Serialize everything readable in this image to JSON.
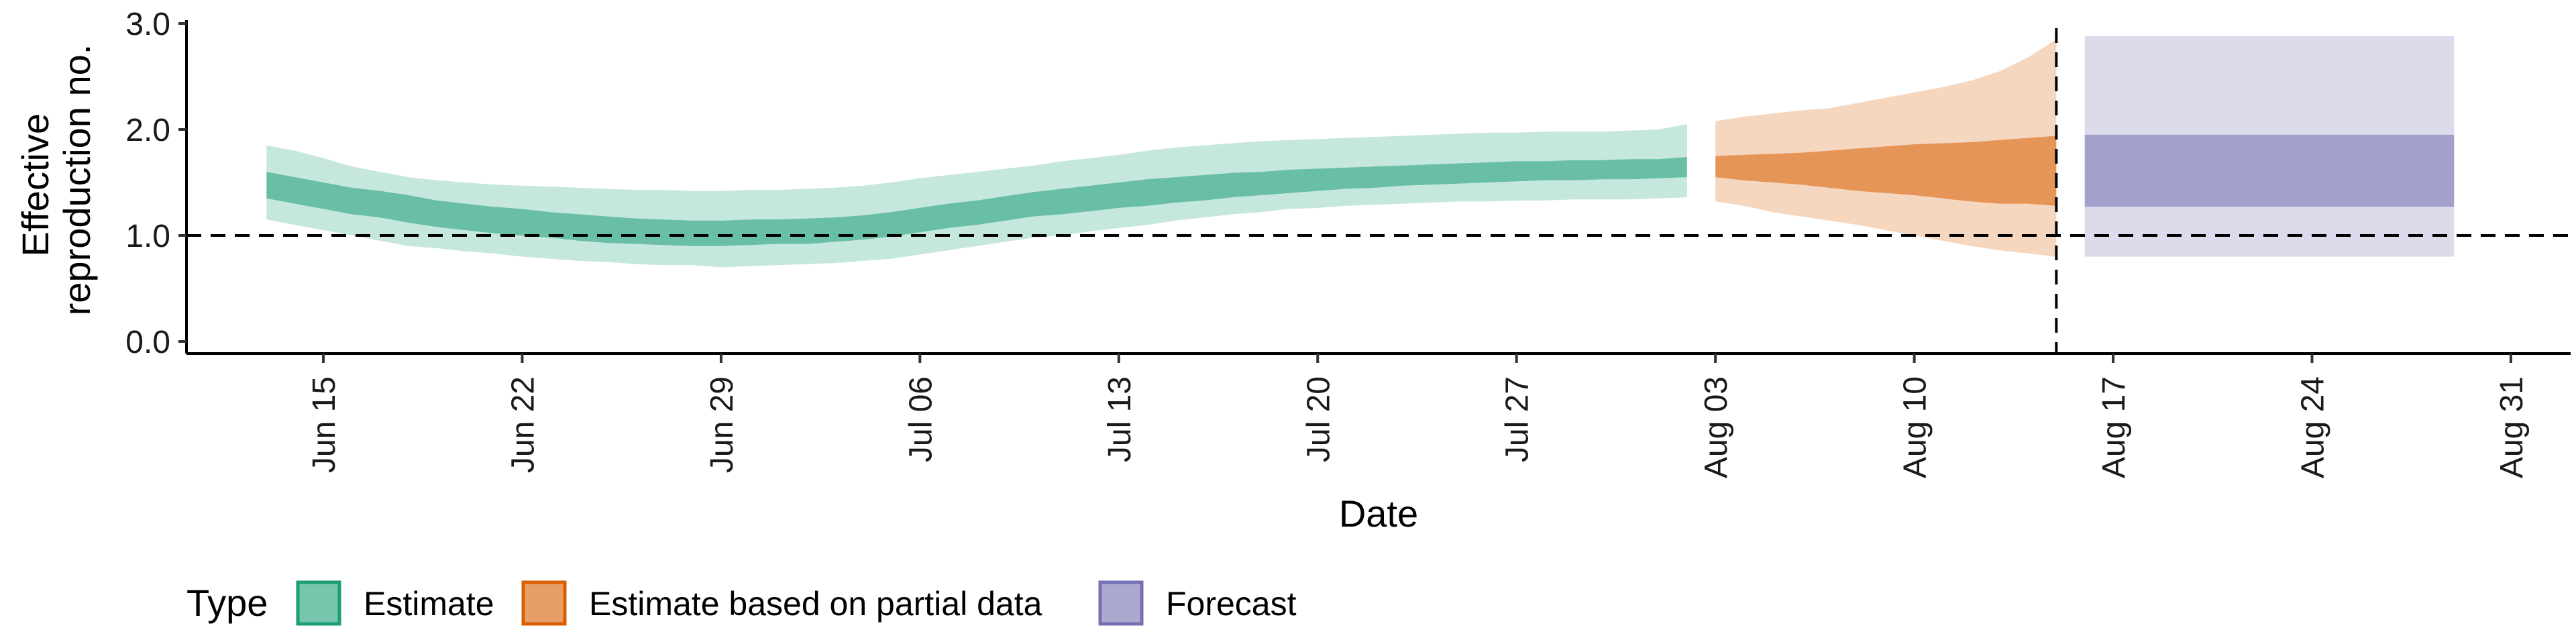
{
  "chart_data": {
    "type": "area",
    "title": "",
    "xlabel": "Date",
    "ylabel": "Effective reproduction no.",
    "ylim": [
      0,
      3
    ],
    "y_ticks": [
      "0.0",
      "1.0",
      "2.0",
      "3.0"
    ],
    "x_ticks": [
      "Jun 15",
      "Jun 22",
      "Jun 29",
      "Jul 06",
      "Jul 13",
      "Jul 20",
      "Jul 27",
      "Aug 03",
      "Aug 10",
      "Aug 17",
      "Aug 24",
      "Aug 31"
    ],
    "x_tick_dates": [
      "2020-06-15",
      "2020-06-22",
      "2020-06-29",
      "2020-07-06",
      "2020-07-13",
      "2020-07-20",
      "2020-07-27",
      "2020-08-03",
      "2020-08-10",
      "2020-08-17",
      "2020-08-24",
      "2020-08-31"
    ],
    "reference_line_y": 1.0,
    "vertical_line_date": "2020-08-15",
    "grid": false,
    "legend": {
      "title": "Type",
      "placement": "bottom",
      "items": [
        {
          "label": "Estimate",
          "color": "#1b9e77"
        },
        {
          "label": "Estimate based on partial data",
          "color": "#d95f02"
        },
        {
          "label": "Forecast",
          "color": "#7570b3"
        }
      ]
    },
    "series": [
      {
        "name": "Estimate",
        "color": "#1b9e77",
        "x": [
          "2020-06-13",
          "2020-06-14",
          "2020-06-15",
          "2020-06-16",
          "2020-06-17",
          "2020-06-18",
          "2020-06-19",
          "2020-06-20",
          "2020-06-21",
          "2020-06-22",
          "2020-06-23",
          "2020-06-24",
          "2020-06-25",
          "2020-06-26",
          "2020-06-27",
          "2020-06-28",
          "2020-06-29",
          "2020-06-30",
          "2020-07-01",
          "2020-07-02",
          "2020-07-03",
          "2020-07-04",
          "2020-07-05",
          "2020-07-06",
          "2020-07-07",
          "2020-07-08",
          "2020-07-09",
          "2020-07-10",
          "2020-07-11",
          "2020-07-12",
          "2020-07-13",
          "2020-07-14",
          "2020-07-15",
          "2020-07-16",
          "2020-07-17",
          "2020-07-18",
          "2020-07-19",
          "2020-07-20",
          "2020-07-21",
          "2020-07-22",
          "2020-07-23",
          "2020-07-24",
          "2020-07-25",
          "2020-07-26",
          "2020-07-27",
          "2020-07-28",
          "2020-07-29",
          "2020-07-30",
          "2020-07-31",
          "2020-08-01",
          "2020-08-02"
        ],
        "lower_90": [
          1.15,
          1.1,
          1.05,
          1.0,
          0.95,
          0.9,
          0.88,
          0.85,
          0.83,
          0.8,
          0.78,
          0.76,
          0.75,
          0.73,
          0.72,
          0.72,
          0.7,
          0.71,
          0.72,
          0.73,
          0.74,
          0.76,
          0.78,
          0.82,
          0.86,
          0.9,
          0.94,
          0.98,
          1.0,
          1.04,
          1.07,
          1.1,
          1.14,
          1.17,
          1.2,
          1.22,
          1.25,
          1.26,
          1.28,
          1.29,
          1.3,
          1.31,
          1.32,
          1.32,
          1.33,
          1.33,
          1.34,
          1.34,
          1.34,
          1.35,
          1.36
        ],
        "lower_50": [
          1.35,
          1.3,
          1.25,
          1.2,
          1.17,
          1.12,
          1.08,
          1.05,
          1.02,
          1.0,
          0.98,
          0.95,
          0.93,
          0.92,
          0.91,
          0.9,
          0.9,
          0.91,
          0.92,
          0.92,
          0.94,
          0.96,
          0.99,
          1.03,
          1.07,
          1.1,
          1.14,
          1.18,
          1.2,
          1.23,
          1.26,
          1.28,
          1.31,
          1.33,
          1.36,
          1.38,
          1.4,
          1.42,
          1.44,
          1.45,
          1.47,
          1.48,
          1.49,
          1.5,
          1.51,
          1.52,
          1.52,
          1.53,
          1.53,
          1.54,
          1.55
        ],
        "upper_50": [
          1.6,
          1.55,
          1.5,
          1.45,
          1.42,
          1.38,
          1.33,
          1.3,
          1.27,
          1.25,
          1.22,
          1.2,
          1.18,
          1.16,
          1.15,
          1.14,
          1.14,
          1.15,
          1.15,
          1.16,
          1.17,
          1.19,
          1.22,
          1.26,
          1.3,
          1.33,
          1.37,
          1.41,
          1.44,
          1.47,
          1.5,
          1.53,
          1.55,
          1.57,
          1.59,
          1.6,
          1.62,
          1.63,
          1.64,
          1.65,
          1.66,
          1.67,
          1.68,
          1.69,
          1.7,
          1.7,
          1.71,
          1.71,
          1.72,
          1.72,
          1.74
        ],
        "upper_90": [
          1.85,
          1.8,
          1.73,
          1.65,
          1.6,
          1.55,
          1.52,
          1.5,
          1.48,
          1.47,
          1.46,
          1.45,
          1.44,
          1.43,
          1.43,
          1.42,
          1.42,
          1.43,
          1.43,
          1.44,
          1.45,
          1.47,
          1.5,
          1.54,
          1.57,
          1.6,
          1.63,
          1.66,
          1.7,
          1.73,
          1.76,
          1.8,
          1.83,
          1.85,
          1.87,
          1.89,
          1.9,
          1.91,
          1.92,
          1.93,
          1.94,
          1.95,
          1.96,
          1.97,
          1.97,
          1.98,
          1.98,
          1.98,
          1.99,
          2.0,
          2.05
        ]
      },
      {
        "name": "Estimate based on partial data",
        "color": "#d95f02",
        "x": [
          "2020-08-03",
          "2020-08-04",
          "2020-08-05",
          "2020-08-06",
          "2020-08-07",
          "2020-08-08",
          "2020-08-09",
          "2020-08-10",
          "2020-08-11",
          "2020-08-12",
          "2020-08-13",
          "2020-08-14",
          "2020-08-15"
        ],
        "lower_90": [
          1.32,
          1.28,
          1.22,
          1.18,
          1.14,
          1.1,
          1.05,
          1.0,
          0.95,
          0.9,
          0.86,
          0.83,
          0.8
        ],
        "lower_50": [
          1.55,
          1.52,
          1.5,
          1.48,
          1.45,
          1.42,
          1.4,
          1.38,
          1.35,
          1.32,
          1.3,
          1.3,
          1.28
        ],
        "upper_50": [
          1.75,
          1.76,
          1.77,
          1.78,
          1.8,
          1.82,
          1.84,
          1.86,
          1.87,
          1.88,
          1.9,
          1.92,
          1.94
        ],
        "upper_90": [
          2.08,
          2.12,
          2.15,
          2.18,
          2.2,
          2.25,
          2.3,
          2.35,
          2.4,
          2.46,
          2.55,
          2.68,
          2.85
        ]
      },
      {
        "name": "Forecast",
        "color": "#7570b3",
        "x": [
          "2020-08-16",
          "2020-08-29"
        ],
        "lower_90": [
          0.8,
          0.8
        ],
        "lower_50": [
          1.27,
          1.27
        ],
        "upper_50": [
          1.95,
          1.95
        ],
        "upper_90": [
          2.88,
          2.88
        ]
      }
    ]
  }
}
